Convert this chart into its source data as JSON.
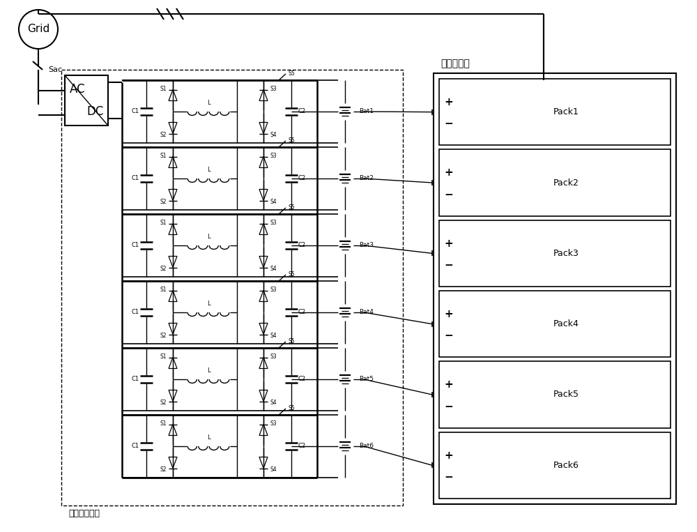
{
  "fig_width": 10.0,
  "fig_height": 7.63,
  "dpi": 100,
  "bg_color": "#ffffff",
  "grid_label": "Grid",
  "sac_label": "Sac",
  "min_inv_label": "最小逆变单元",
  "battery_cabinet_label": "储能电池柜",
  "pack_labels": [
    "Pack1",
    "Pack2",
    "Pack3",
    "Pack4",
    "Pack5",
    "Pack6"
  ],
  "bat_labels": [
    "Bat1",
    "Bat2",
    "Bat3",
    "Bat4",
    "Bat5",
    "Bat6"
  ],
  "line_color": "#000000",
  "lw_thin": 0.8,
  "lw_med": 1.2,
  "lw_thick": 2.0
}
